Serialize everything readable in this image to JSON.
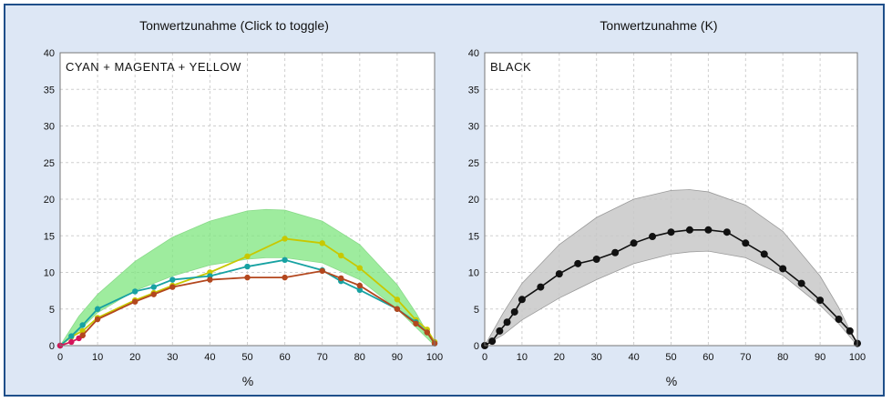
{
  "colors": {
    "frame": "#1f4f8a",
    "background": "#dde7f5",
    "cyan": "#17a2a2",
    "magenta": "#d4145a",
    "yellow": "#c8c800",
    "cmy_band": "#7de67d",
    "black": "#111111",
    "k_band": "#c8c8c8",
    "cmy_composite": "#b3471e"
  },
  "chart_data": [
    {
      "type": "line",
      "title": "Tonwertzunahme (Click to toggle)",
      "inset_label": "CYAN + MAGENTA + YELLOW",
      "xlabel": "%",
      "ylabel": "",
      "xlim": [
        0,
        100
      ],
      "ylim": [
        0,
        40
      ],
      "xticks": [
        0,
        10,
        20,
        30,
        40,
        50,
        60,
        70,
        80,
        90,
        100
      ],
      "yticks": [
        0,
        5,
        10,
        15,
        20,
        25,
        30,
        35,
        40
      ],
      "grid": true,
      "band": {
        "x": [
          0,
          5,
          10,
          20,
          30,
          40,
          50,
          55,
          60,
          70,
          80,
          90,
          95,
          100
        ],
        "upper": [
          0,
          4.0,
          7.0,
          11.5,
          14.8,
          17.0,
          18.4,
          18.6,
          18.5,
          17.0,
          13.8,
          8.3,
          4.5,
          0
        ],
        "lower": [
          0,
          2.0,
          4.5,
          7.5,
          9.5,
          11.0,
          11.8,
          12.0,
          12.0,
          11.3,
          9.0,
          5.0,
          2.5,
          0
        ]
      },
      "series": [
        {
          "color": "#c8c800",
          "x": [
            0,
            3,
            6,
            10,
            20,
            25,
            30,
            40,
            50,
            60,
            70,
            75,
            80,
            90,
            95,
            98,
            100
          ],
          "values": [
            0,
            1.2,
            2.0,
            3.8,
            6.2,
            7.2,
            8.2,
            10.0,
            12.2,
            14.6,
            14.0,
            12.3,
            10.6,
            6.3,
            3.5,
            2.2,
            0.5
          ]
        },
        {
          "color": "#17a2a2",
          "x": [
            0,
            3,
            6,
            10,
            20,
            25,
            30,
            40,
            50,
            60,
            70,
            75,
            80,
            90,
            95,
            98,
            100
          ],
          "values": [
            0,
            1.3,
            2.8,
            5.0,
            7.4,
            8.0,
            9.0,
            9.5,
            10.8,
            11.7,
            10.3,
            8.8,
            7.6,
            5.0,
            3.2,
            1.8,
            0.3
          ]
        },
        {
          "color": "#d4145a",
          "x": [
            0,
            3,
            5,
            6
          ],
          "values": [
            0,
            0.5,
            1.0,
            1.4
          ]
        },
        {
          "color": "#b3471e",
          "x": [
            6,
            10,
            20,
            25,
            30,
            40,
            50,
            60,
            70,
            75,
            80,
            90,
            95,
            98,
            100
          ],
          "values": [
            1.4,
            3.6,
            6.0,
            7.0,
            8.0,
            9.0,
            9.3,
            9.3,
            10.2,
            9.2,
            8.2,
            5.0,
            3.0,
            1.8,
            0.3
          ],
          "marker_values_only": false
        }
      ]
    },
    {
      "type": "line",
      "title": "Tonwertzunahme (K)",
      "inset_label": "BLACK",
      "xlabel": "%",
      "ylabel": "",
      "xlim": [
        0,
        100
      ],
      "ylim": [
        0,
        40
      ],
      "xticks": [
        0,
        10,
        20,
        30,
        40,
        50,
        60,
        70,
        80,
        90,
        100
      ],
      "yticks": [
        0,
        5,
        10,
        15,
        20,
        25,
        30,
        35,
        40
      ],
      "grid": true,
      "band": {
        "x": [
          0,
          5,
          10,
          20,
          30,
          40,
          50,
          55,
          60,
          70,
          80,
          90,
          95,
          100
        ],
        "upper": [
          0,
          4.5,
          8.5,
          13.8,
          17.5,
          20.0,
          21.2,
          21.3,
          21.0,
          19.2,
          15.6,
          9.5,
          5.2,
          0
        ],
        "lower": [
          0,
          1.5,
          3.5,
          6.5,
          9.0,
          11.2,
          12.5,
          12.8,
          12.9,
          12.0,
          9.6,
          5.5,
          3.0,
          0
        ]
      },
      "series": [
        {
          "color": "#111111",
          "x": [
            0,
            2,
            4,
            6,
            8,
            10,
            15,
            20,
            25,
            30,
            35,
            40,
            45,
            50,
            55,
            60,
            65,
            70,
            75,
            80,
            85,
            90,
            95,
            98,
            100
          ],
          "values": [
            0,
            0.6,
            2.0,
            3.2,
            4.6,
            6.3,
            8.0,
            9.8,
            11.2,
            11.8,
            12.7,
            14.0,
            14.9,
            15.5,
            15.8,
            15.8,
            15.5,
            14.0,
            12.5,
            10.5,
            8.5,
            6.2,
            3.6,
            2.0,
            0.3
          ]
        }
      ]
    }
  ]
}
